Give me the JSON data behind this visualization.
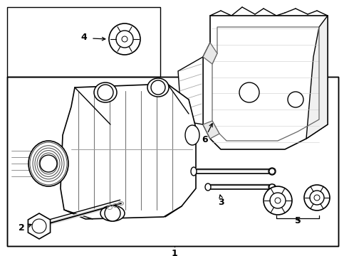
{
  "bg": "#ffffff",
  "lc": "#000000",
  "lw": 1.0,
  "fig_w": 4.9,
  "fig_h": 3.6,
  "dpi": 100
}
